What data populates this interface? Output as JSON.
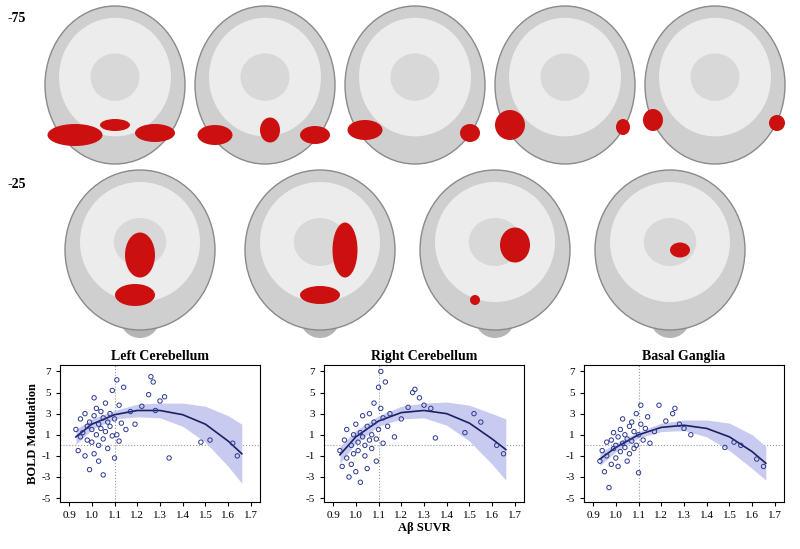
{
  "slice_labels": [
    "-75",
    "-25"
  ],
  "chart_data": [
    {
      "type": "scatter",
      "title": "Left Cerebellum",
      "ylabel": "BOLD Modulation",
      "xlim": [
        0.86,
        1.74
      ],
      "xticks": [
        0.9,
        1.0,
        1.1,
        1.2,
        1.3,
        1.4,
        1.5,
        1.6,
        1.7
      ],
      "ylim": [
        -5.4,
        7.6
      ],
      "yticks": [
        -5,
        -3,
        -1,
        1,
        3,
        5,
        7
      ],
      "vlines": [
        1.1
      ],
      "hlines": [
        0
      ],
      "color": "#2b3990",
      "marker": "o",
      "x": [
        0.93,
        0.94,
        0.95,
        0.95,
        0.96,
        0.97,
        0.97,
        0.98,
        0.98,
        0.99,
        0.99,
        1.0,
        1.0,
        1.01,
        1.01,
        1.01,
        1.02,
        1.02,
        1.03,
        1.03,
        1.03,
        1.04,
        1.04,
        1.05,
        1.05,
        1.05,
        1.06,
        1.06,
        1.07,
        1.07,
        1.08,
        1.08,
        1.09,
        1.09,
        1.1,
        1.1,
        1.11,
        1.11,
        1.12,
        1.12,
        1.13,
        1.14,
        1.15,
        1.17,
        1.19,
        1.22,
        1.25,
        1.26,
        1.27,
        1.28,
        1.3,
        1.32,
        1.34,
        1.48,
        1.52,
        1.62,
        1.64
      ],
      "values": [
        1.5,
        -0.5,
        2.5,
        0.8,
        1.2,
        -1.0,
        3.0,
        0.5,
        1.8,
        -2.3,
        2.2,
        0.3,
        1.5,
        4.5,
        2.8,
        -0.8,
        1.0,
        3.5,
        0.0,
        2.0,
        -1.5,
        1.6,
        3.2,
        0.6,
        2.6,
        -2.8,
        1.3,
        4.0,
        2.2,
        -0.3,
        1.8,
        3.0,
        0.9,
        5.2,
        2.5,
        -1.2,
        6.2,
        1.0,
        3.8,
        0.4,
        2.1,
        5.5,
        1.5,
        3.2,
        2.0,
        3.7,
        4.8,
        6.5,
        6.0,
        3.3,
        4.2,
        4.6,
        -1.2,
        0.3,
        0.5,
        0.2,
        -1.0
      ],
      "fit": {
        "type": "line",
        "color": "#1c2060",
        "line_style": "solid",
        "x": [
          0.93,
          1.0,
          1.1,
          1.2,
          1.3,
          1.4,
          1.5,
          1.6,
          1.66
        ],
        "values": [
          0.8,
          2.0,
          2.9,
          3.3,
          3.3,
          2.9,
          2.0,
          0.4,
          -0.8
        ],
        "lower": [
          0.1,
          1.5,
          2.5,
          2.7,
          2.6,
          1.8,
          0.3,
          -2.0,
          -3.6
        ],
        "upper": [
          1.5,
          2.5,
          3.3,
          3.9,
          4.0,
          4.0,
          3.7,
          2.8,
          2.0
        ]
      }
    },
    {
      "type": "scatter",
      "title": "Right Cerebellum",
      "xlabel": "Aβ SUVR",
      "xlim": [
        0.86,
        1.74
      ],
      "xticks": [
        0.9,
        1.0,
        1.1,
        1.2,
        1.3,
        1.4,
        1.5,
        1.6,
        1.7
      ],
      "ylim": [
        -5.4,
        7.6
      ],
      "yticks": [
        -5,
        -3,
        -1,
        1,
        3,
        5,
        7
      ],
      "vlines": [
        1.1
      ],
      "hlines": [
        0
      ],
      "color": "#2b3990",
      "marker": "o",
      "x": [
        0.93,
        0.94,
        0.95,
        0.96,
        0.96,
        0.97,
        0.98,
        0.98,
        0.99,
        0.99,
        1.0,
        1.0,
        1.01,
        1.01,
        1.02,
        1.02,
        1.03,
        1.03,
        1.04,
        1.04,
        1.05,
        1.05,
        1.06,
        1.06,
        1.07,
        1.07,
        1.08,
        1.08,
        1.09,
        1.09,
        1.1,
        1.1,
        1.11,
        1.11,
        1.12,
        1.12,
        1.13,
        1.14,
        1.15,
        1.17,
        1.2,
        1.23,
        1.25,
        1.26,
        1.28,
        1.3,
        1.33,
        1.35,
        1.48,
        1.52,
        1.55,
        1.62,
        1.65
      ],
      "values": [
        -0.5,
        -2.0,
        0.5,
        -1.2,
        1.5,
        -3.0,
        0.0,
        -1.8,
        1.0,
        -0.8,
        -2.5,
        2.0,
        0.3,
        -0.5,
        1.2,
        -3.5,
        0.8,
        2.8,
        -1.0,
        0.0,
        1.8,
        -2.2,
        0.5,
        3.0,
        1.0,
        -0.3,
        4.0,
        2.2,
        0.6,
        -1.5,
        5.5,
        1.5,
        7.0,
        3.5,
        0.2,
        2.6,
        6.0,
        1.8,
        3.0,
        0.8,
        2.5,
        3.6,
        5.0,
        5.3,
        4.5,
        3.8,
        3.5,
        0.7,
        1.2,
        3.0,
        2.2,
        0.0,
        -0.8
      ],
      "fit": {
        "type": "line",
        "color": "#1c2060",
        "line_style": "solid",
        "x": [
          0.93,
          1.0,
          1.1,
          1.2,
          1.3,
          1.4,
          1.5,
          1.6,
          1.66
        ],
        "values": [
          -0.9,
          0.8,
          2.3,
          3.1,
          3.3,
          3.0,
          2.1,
          0.6,
          -0.4
        ],
        "lower": [
          -1.7,
          0.2,
          1.8,
          2.5,
          2.6,
          1.9,
          0.4,
          -1.8,
          -3.3
        ],
        "upper": [
          -0.1,
          1.4,
          2.8,
          3.7,
          4.0,
          4.1,
          3.8,
          3.0,
          2.5
        ]
      }
    },
    {
      "type": "scatter",
      "title": "Basal Ganglia",
      "xlim": [
        0.86,
        1.74
      ],
      "xticks": [
        0.9,
        1.0,
        1.1,
        1.2,
        1.3,
        1.4,
        1.5,
        1.6,
        1.7
      ],
      "ylim": [
        -5.4,
        7.6
      ],
      "yticks": [
        -5,
        -3,
        -1,
        1,
        3,
        5,
        7
      ],
      "vlines": [
        1.1
      ],
      "hlines": [
        0
      ],
      "color": "#2b3990",
      "marker": "o",
      "x": [
        0.93,
        0.94,
        0.95,
        0.96,
        0.96,
        0.97,
        0.98,
        0.98,
        0.99,
        0.99,
        1.0,
        1.0,
        1.01,
        1.01,
        1.02,
        1.02,
        1.03,
        1.03,
        1.04,
        1.04,
        1.05,
        1.05,
        1.06,
        1.06,
        1.07,
        1.07,
        1.08,
        1.08,
        1.09,
        1.09,
        1.1,
        1.1,
        1.11,
        1.11,
        1.12,
        1.13,
        1.14,
        1.15,
        1.17,
        1.19,
        1.22,
        1.25,
        1.26,
        1.28,
        1.3,
        1.33,
        1.48,
        1.52,
        1.55,
        1.62,
        1.65
      ],
      "values": [
        -1.5,
        -0.5,
        -2.5,
        -1.0,
        0.3,
        -4.0,
        -1.8,
        0.5,
        -0.3,
        1.2,
        -1.2,
        0.0,
        0.8,
        -2.0,
        1.5,
        -0.6,
        0.2,
        2.5,
        -0.2,
        1.0,
        -1.5,
        0.6,
        1.8,
        -0.8,
        0.4,
        2.2,
        -0.3,
        1.3,
        3.0,
        0.0,
        1.0,
        -2.6,
        2.0,
        3.8,
        0.5,
        1.6,
        2.7,
        0.2,
        1.3,
        3.8,
        2.3,
        3.0,
        3.5,
        2.0,
        1.6,
        1.0,
        -0.2,
        0.3,
        0.0,
        -1.3,
        -2.0
      ],
      "fit": {
        "type": "line",
        "color": "#1c2060",
        "line_style": "solid",
        "x": [
          0.93,
          1.0,
          1.1,
          1.2,
          1.3,
          1.4,
          1.5,
          1.6,
          1.66
        ],
        "values": [
          -1.3,
          -0.2,
          1.0,
          1.7,
          1.9,
          1.6,
          0.8,
          -0.6,
          -1.7
        ],
        "lower": [
          -1.9,
          -0.6,
          0.7,
          1.3,
          1.4,
          0.8,
          -0.5,
          -2.2,
          -3.3
        ],
        "upper": [
          -0.7,
          0.2,
          1.3,
          2.1,
          2.4,
          2.4,
          2.1,
          1.0,
          -0.1
        ]
      }
    }
  ]
}
